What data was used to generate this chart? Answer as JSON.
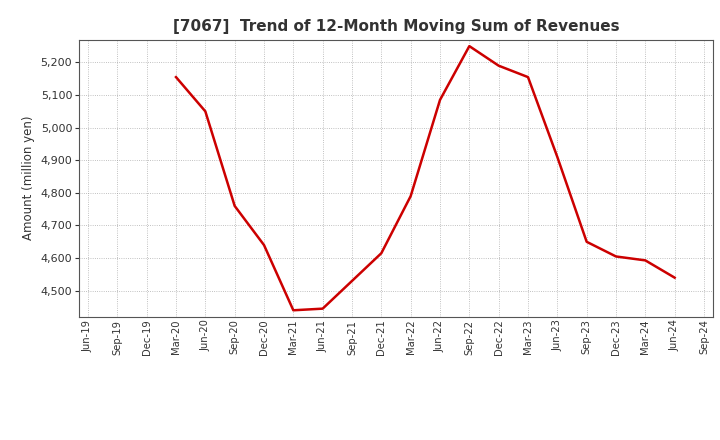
{
  "title": "[7067]  Trend of 12-Month Moving Sum of Revenues",
  "ylabel": "Amount (million yen)",
  "line_color": "#cc0000",
  "line_width": 1.8,
  "background_color": "#ffffff",
  "plot_bg_color": "#ffffff",
  "grid_color": "#999999",
  "ylim": [
    4420,
    5270
  ],
  "yticks": [
    4500,
    4600,
    4700,
    4800,
    4900,
    5000,
    5100,
    5200
  ],
  "dates": [
    "Jun-19",
    "Sep-19",
    "Dec-19",
    "Mar-20",
    "Jun-20",
    "Sep-20",
    "Dec-20",
    "Mar-21",
    "Jun-21",
    "Sep-21",
    "Dec-21",
    "Mar-22",
    "Jun-22",
    "Sep-22",
    "Dec-22",
    "Mar-23",
    "Jun-23",
    "Sep-23",
    "Dec-23",
    "Mar-24",
    "Jun-24",
    "Sep-24"
  ],
  "values": [
    null,
    null,
    null,
    5155,
    5050,
    4760,
    4640,
    4440,
    4445,
    4530,
    4615,
    4790,
    5085,
    5250,
    5190,
    5155,
    4910,
    4650,
    4605,
    4593,
    4540,
    null
  ]
}
